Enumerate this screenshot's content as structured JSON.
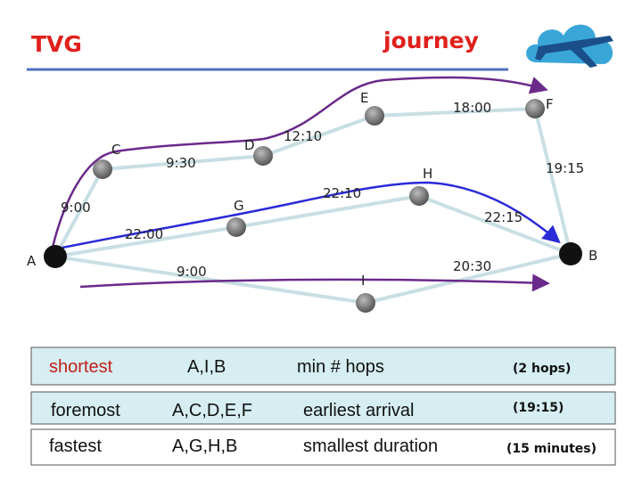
{
  "header": {
    "left": "TVG",
    "right": "journey"
  },
  "nodes": [
    {
      "id": "A",
      "label": "A"
    },
    {
      "id": "B",
      "label": "B"
    },
    {
      "id": "C",
      "label": "C"
    },
    {
      "id": "D",
      "label": "D"
    },
    {
      "id": "E",
      "label": "E"
    },
    {
      "id": "F",
      "label": "F"
    },
    {
      "id": "G",
      "label": "G"
    },
    {
      "id": "H",
      "label": "H"
    },
    {
      "id": "I",
      "label": "I"
    }
  ],
  "edge_labels": [
    "9:00",
    "9:30",
    "12:10",
    "18:00",
    "19:15",
    "22:00",
    "22:10",
    "22:15",
    "9:00",
    "20:30"
  ],
  "table": {
    "rows": [
      [
        "shortest",
        "A,I,B",
        "min # hops",
        "(2 hops)"
      ],
      [
        "foremost",
        "A,C,D,E,F",
        "earliest arrival",
        "(19:15)"
      ],
      [
        "fastest",
        "A,G,H,B",
        "smallest duration",
        "(15 minutes)"
      ]
    ]
  }
}
